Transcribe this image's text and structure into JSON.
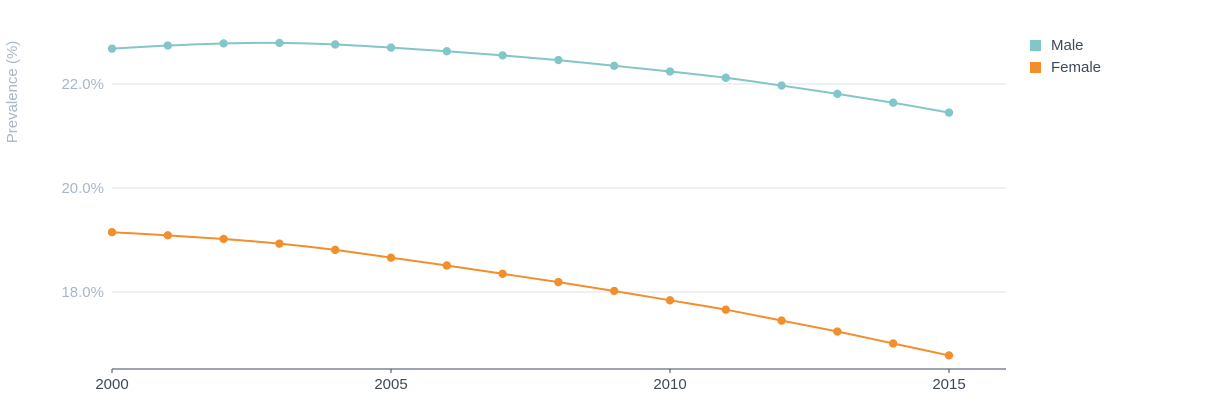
{
  "chart_data": {
    "type": "line",
    "ylabel": "Prevalence (%)",
    "xlabel": "",
    "x": [
      2000,
      2001,
      2002,
      2003,
      2004,
      2005,
      2006,
      2007,
      2008,
      2009,
      2010,
      2011,
      2012,
      2013,
      2014,
      2015
    ],
    "x_ticks": [
      "2000",
      "2005",
      "2010",
      "2015"
    ],
    "y_ticks": [
      "18.0%",
      "20.0%",
      "22.0%"
    ],
    "ylim": [
      16.5,
      23.5
    ],
    "xlim": [
      2000,
      2016
    ],
    "grid": "horizontal",
    "legend_position": "top-right",
    "series": [
      {
        "name": "Male",
        "color": "#82c6c8",
        "values": [
          22.68,
          22.74,
          22.78,
          22.79,
          22.76,
          22.7,
          22.63,
          22.55,
          22.46,
          22.35,
          22.24,
          22.12,
          21.97,
          21.81,
          21.64,
          21.45
        ]
      },
      {
        "name": "Female",
        "color": "#f28e2b",
        "values": [
          19.15,
          19.09,
          19.02,
          18.93,
          18.81,
          18.66,
          18.51,
          18.35,
          18.19,
          18.02,
          17.84,
          17.66,
          17.45,
          17.24,
          17.01,
          16.78
        ]
      }
    ]
  }
}
